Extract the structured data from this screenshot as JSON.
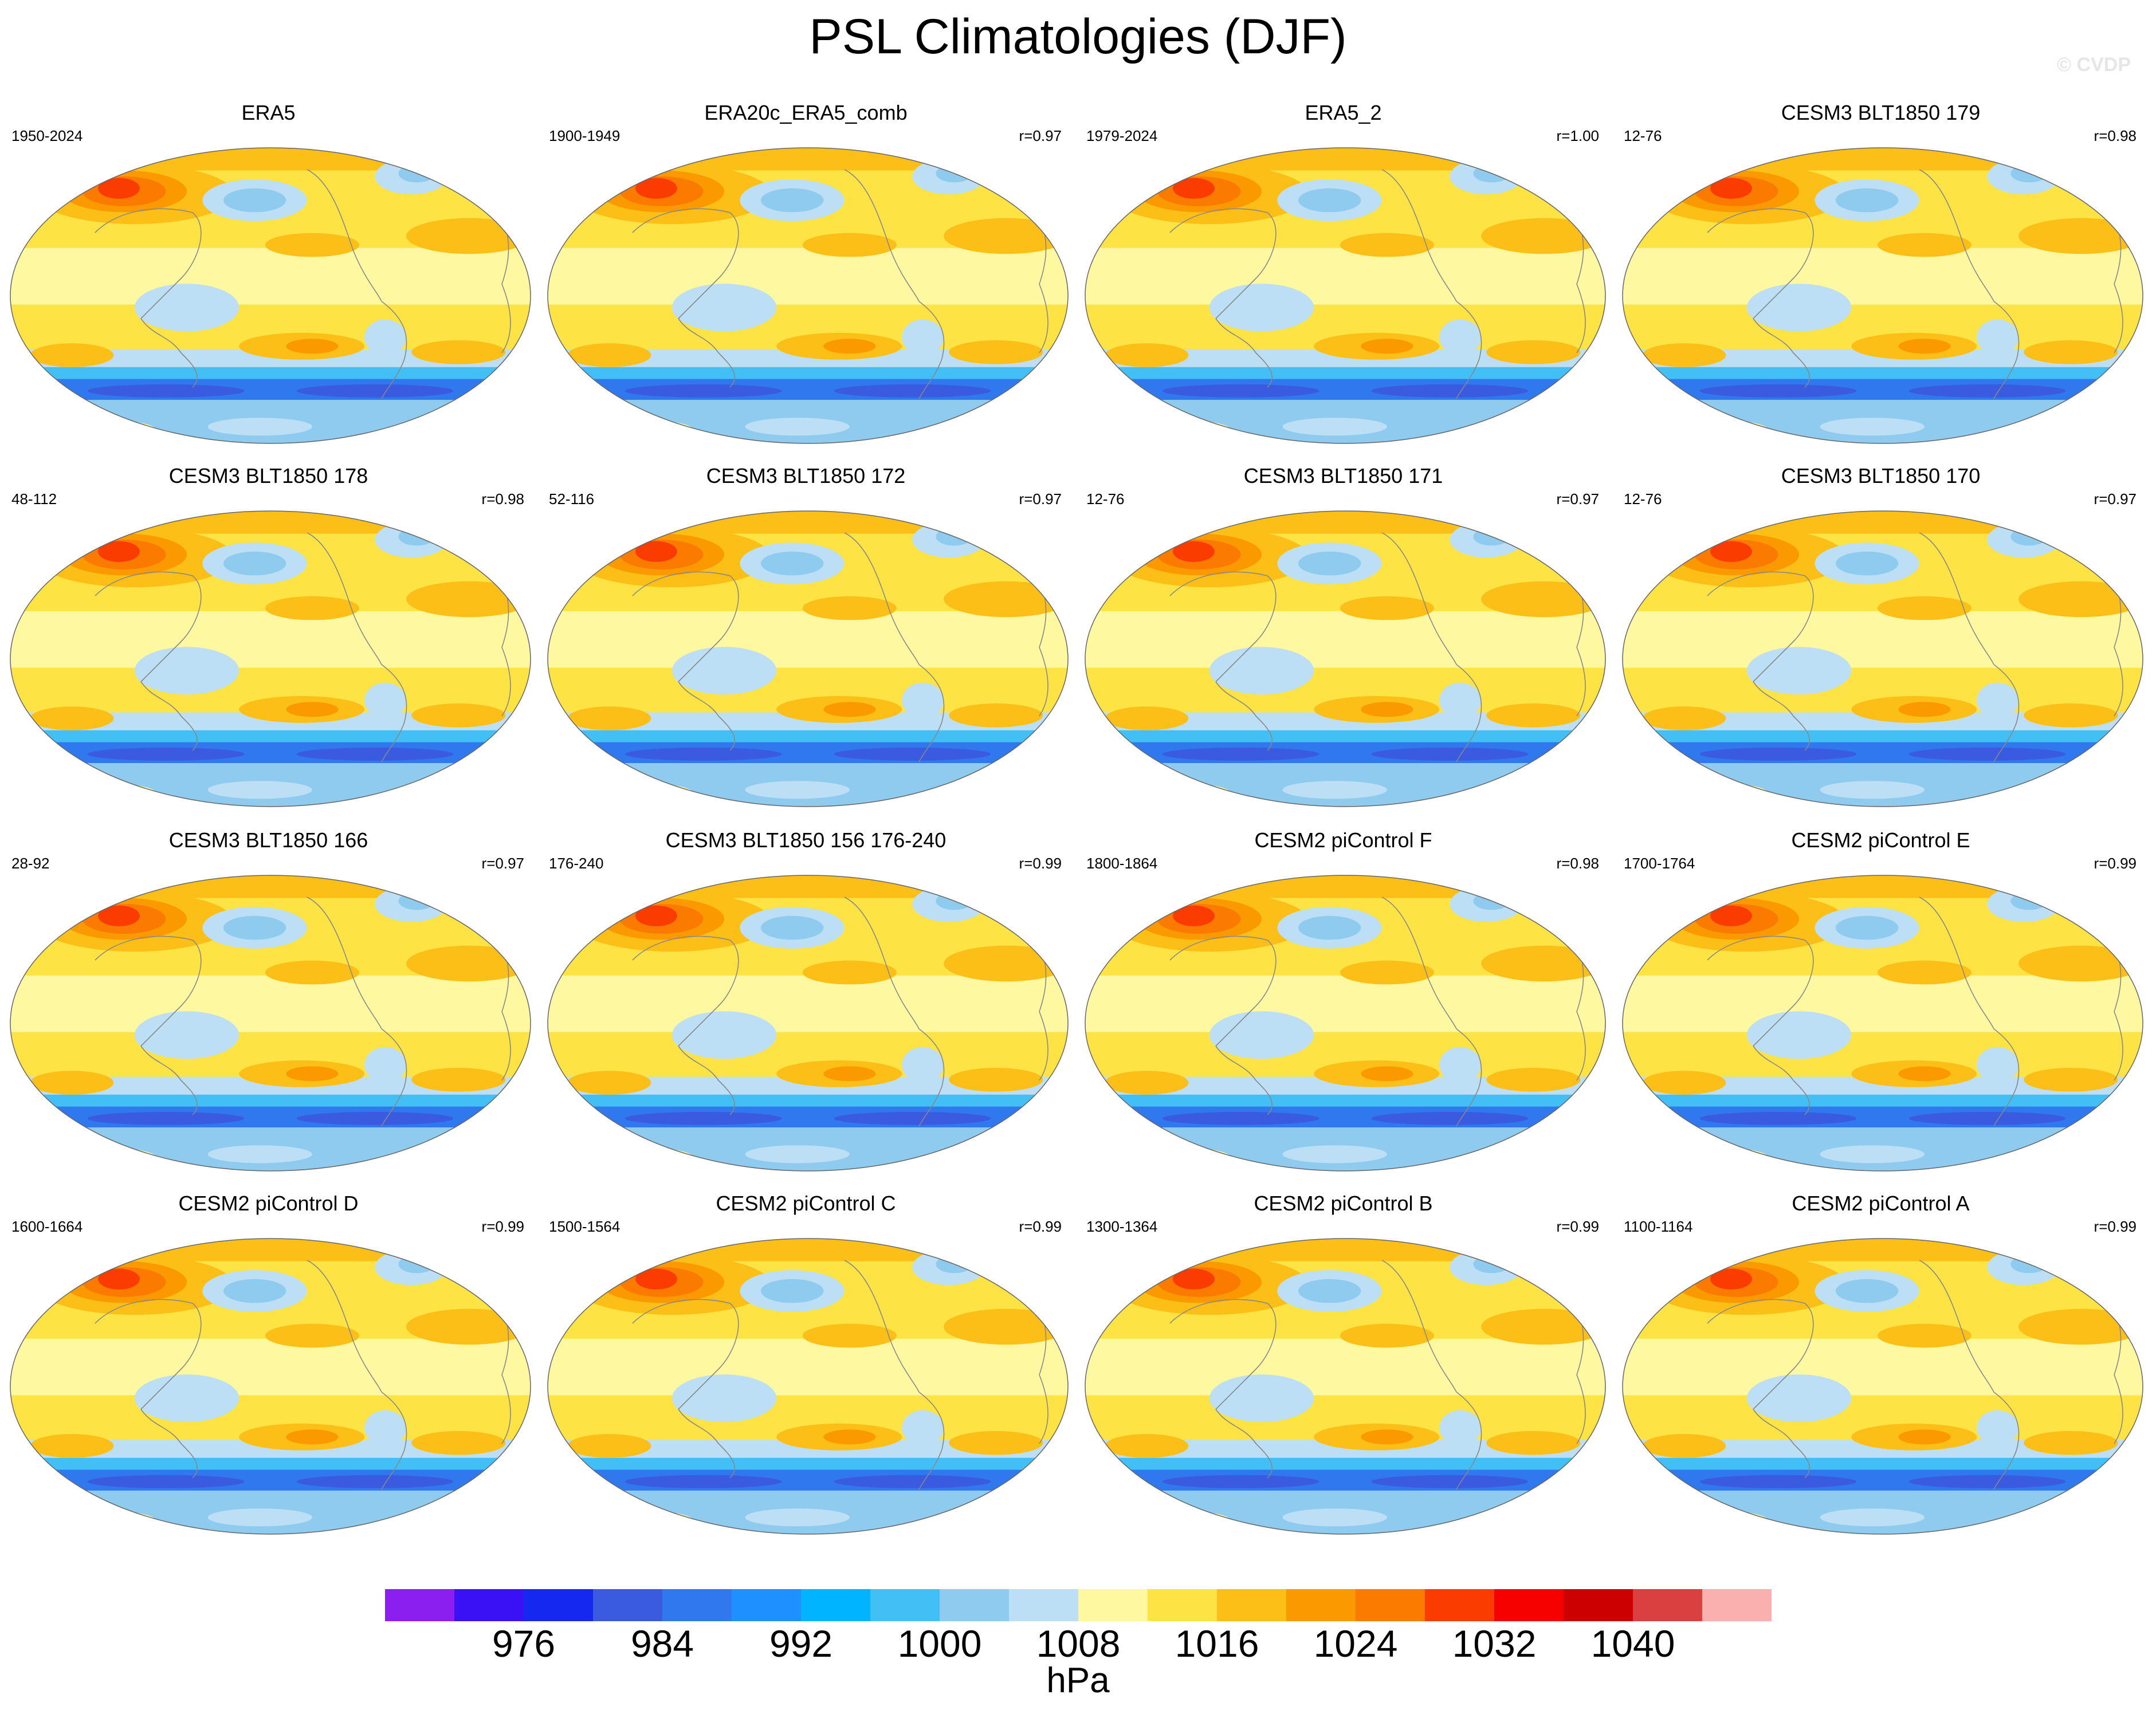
{
  "title": "PSL Climatologies (DJF)",
  "watermark": "© CVDP",
  "chart_data": {
    "type": "heatmap",
    "title": "PSL Climatologies (DJF)",
    "projection": "Robinson (global)",
    "panels": [
      {
        "name": "ERA5",
        "years": "1950-2024",
        "r": ""
      },
      {
        "name": "ERA20c_ERA5_comb",
        "years": "1900-1949",
        "r": "r=0.97"
      },
      {
        "name": "ERA5_2",
        "years": "1979-2024",
        "r": "r=1.00"
      },
      {
        "name": "CESM3 BLT1850 179",
        "years": "12-76",
        "r": "r=0.98"
      },
      {
        "name": "CESM3 BLT1850 178",
        "years": "48-112",
        "r": "r=0.98"
      },
      {
        "name": "CESM3 BLT1850 172",
        "years": "52-116",
        "r": "r=0.97"
      },
      {
        "name": "CESM3 BLT1850 171",
        "years": "12-76",
        "r": "r=0.97"
      },
      {
        "name": "CESM3 BLT1850 170",
        "years": "12-76",
        "r": "r=0.97"
      },
      {
        "name": "CESM3 BLT1850 166",
        "years": "28-92",
        "r": "r=0.97"
      },
      {
        "name": "CESM3 BLT1850 156 176-240",
        "years": "176-240",
        "r": "r=0.99"
      },
      {
        "name": "CESM2 piControl F",
        "years": "1800-1864",
        "r": "r=0.98"
      },
      {
        "name": "CESM2 piControl E",
        "years": "1700-1764",
        "r": "r=0.99"
      },
      {
        "name": "CESM2 piControl D",
        "years": "1600-1664",
        "r": "r=0.99"
      },
      {
        "name": "CESM2 piControl C",
        "years": "1500-1564",
        "r": "r=0.99"
      },
      {
        "name": "CESM2 piControl B",
        "years": "1300-1364",
        "r": "r=0.99"
      },
      {
        "name": "CESM2 piControl A",
        "years": "1100-1164",
        "r": "r=0.99"
      }
    ],
    "colorbar": {
      "unit": "hPa",
      "levels": [
        972,
        976,
        980,
        984,
        988,
        992,
        996,
        1000,
        1004,
        1008,
        1012,
        1016,
        1020,
        1024,
        1028,
        1032,
        1036,
        1040,
        1044
      ],
      "tick_labels": [
        "976",
        "984",
        "992",
        "1000",
        "1008",
        "1016",
        "1024",
        "1032",
        "1040"
      ],
      "colors": [
        "#8a1ff0",
        "#3a10f5",
        "#1428f0",
        "#3a5ae0",
        "#2f78ee",
        "#1e90ff",
        "#00b4ff",
        "#42c0f5",
        "#8ecbee",
        "#bcdff5",
        "#fef8a0",
        "#fde343",
        "#fbbf18",
        "#fb9a00",
        "#fb7a00",
        "#fb3c00",
        "#f60000",
        "#cc0000",
        "#da4040",
        "#fbb0b0"
      ]
    }
  }
}
